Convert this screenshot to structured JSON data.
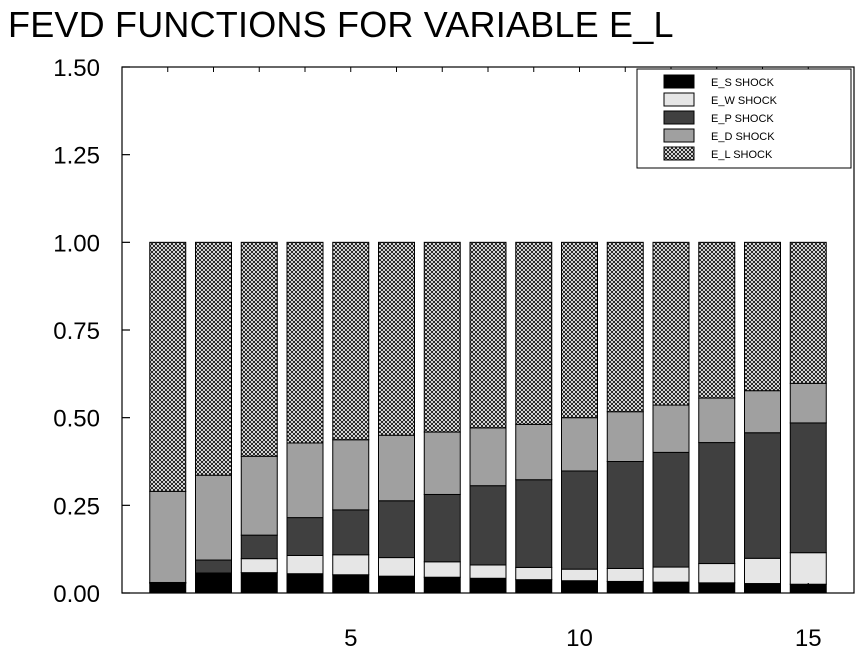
{
  "chart_data": {
    "type": "bar",
    "stacked": true,
    "title": "FEVD FUNCTIONS FOR VARIABLE E_L",
    "xlabel": "",
    "ylabel": "",
    "ylim": [
      0,
      1.5
    ],
    "xlim": [
      0,
      16
    ],
    "yticks": [
      "0.00",
      "0.25",
      "0.50",
      "0.75",
      "1.00",
      "1.25",
      "1.50"
    ],
    "xticks": [
      "5",
      "10",
      "15"
    ],
    "xtick_values": [
      5,
      10,
      15
    ],
    "legend_position": "top-right",
    "categories": [
      1,
      2,
      3,
      4,
      5,
      6,
      7,
      8,
      9,
      10,
      11,
      12,
      13,
      14,
      15
    ],
    "series": [
      {
        "name": "E_S SHOCK",
        "color": "#000000",
        "pattern": "solid",
        "values": [
          0.028,
          0.055,
          0.058,
          0.055,
          0.052,
          0.048,
          0.045,
          0.042,
          0.038,
          0.035,
          0.033,
          0.031,
          0.029,
          0.027,
          0.025
        ]
      },
      {
        "name": "E_W SHOCK",
        "color": "#e6e6e6",
        "pattern": "solid",
        "values": [
          0.001,
          0.002,
          0.04,
          0.052,
          0.057,
          0.053,
          0.044,
          0.038,
          0.035,
          0.033,
          0.037,
          0.043,
          0.055,
          0.072,
          0.09
        ]
      },
      {
        "name": "E_P SHOCK",
        "color": "#404040",
        "pattern": "solid",
        "values": [
          0.001,
          0.037,
          0.067,
          0.108,
          0.128,
          0.162,
          0.192,
          0.226,
          0.25,
          0.28,
          0.305,
          0.327,
          0.345,
          0.358,
          0.37
        ]
      },
      {
        "name": "E_D SHOCK",
        "color": "#a0a0a0",
        "pattern": "solid",
        "values": [
          0.26,
          0.242,
          0.225,
          0.213,
          0.2,
          0.187,
          0.178,
          0.165,
          0.158,
          0.152,
          0.142,
          0.135,
          0.127,
          0.12,
          0.113
        ]
      },
      {
        "name": "E_L SHOCK",
        "color": "#ffffff",
        "pattern": "crosshatch",
        "values": [
          0.71,
          0.664,
          0.61,
          0.572,
          0.563,
          0.55,
          0.541,
          0.529,
          0.519,
          0.5,
          0.483,
          0.464,
          0.444,
          0.423,
          0.402
        ]
      }
    ]
  }
}
